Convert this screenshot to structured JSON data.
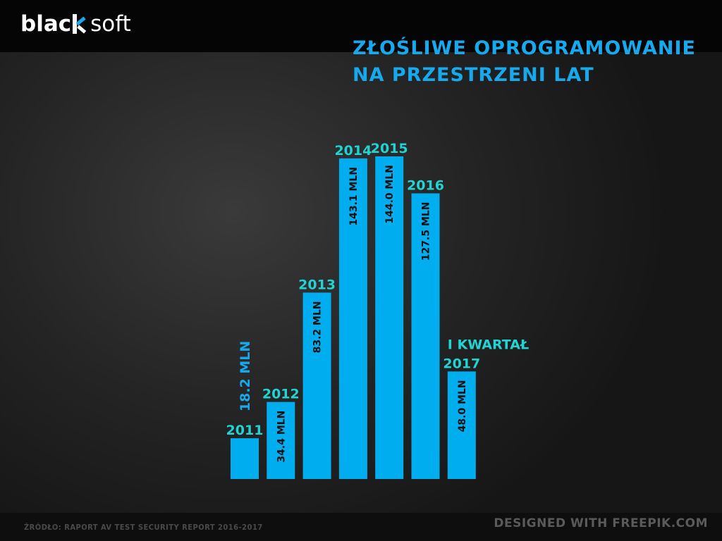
{
  "brand": {
    "logo_left": "blac",
    "logo_right": "soft",
    "logo_color": "#ffffff"
  },
  "title": {
    "line1": "ZŁOŚLIWE OPROGRAMOWANIE",
    "line2": "NA PRZESTRZENI LAT",
    "color": "#16a9ee"
  },
  "colors": {
    "bar": "#00adef",
    "year_label": "#22d3d3",
    "value_text": "#111111",
    "outside_value": "#16a9ee"
  },
  "chart_data": {
    "type": "bar",
    "title": "ZŁOŚLIWE OPROGRAMOWANIE NA PRZESTRZENI LAT",
    "xlabel": "",
    "ylabel": "",
    "unit": "MLN",
    "categories": [
      "2011",
      "2012",
      "2013",
      "2014",
      "2015",
      "2016",
      "I KWARTAŁ 2017"
    ],
    "category_lines": [
      [
        "2011"
      ],
      [
        "2012"
      ],
      [
        "2013"
      ],
      [
        "2014"
      ],
      [
        "2015"
      ],
      [
        "2016"
      ],
      [
        "I KWARTAŁ",
        "2017"
      ]
    ],
    "values": [
      18.2,
      34.4,
      83.2,
      143.1,
      144.0,
      127.5,
      48.0
    ],
    "value_labels": [
      "18.2 MLN",
      "34.4 MLN",
      "83.2 MLN",
      "143.1 MLN",
      "144.0 MLN",
      "127.5 MLN",
      "48.0 MLN"
    ],
    "ylim": [
      0,
      144.0
    ],
    "grid": false,
    "legend": "none"
  },
  "footer": {
    "source": "ŹRÓDŁO: RAPORT AV TEST SECURITY REPORT 2016-2017",
    "credit": "DESIGNED WITH FREEPIK.COM"
  }
}
